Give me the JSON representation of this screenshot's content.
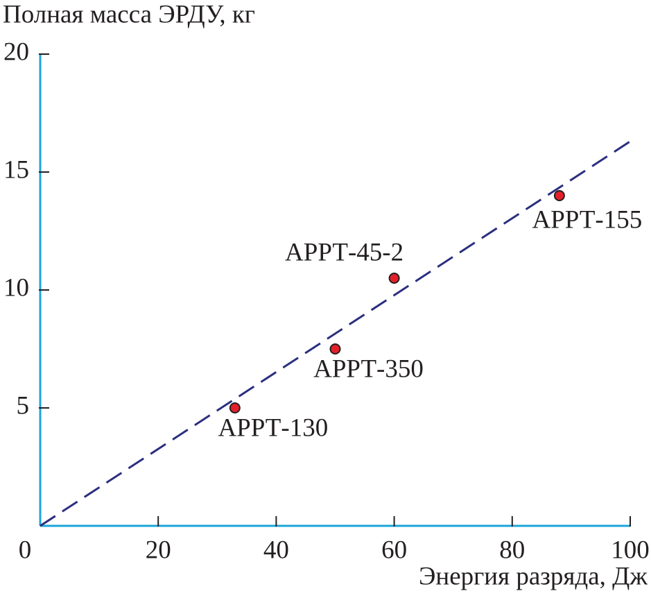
{
  "chart_data": {
    "type": "scatter",
    "title": "Полная масса ЭРДУ, кг",
    "x_label": "Энергия разряда, Дж",
    "x": [
      33,
      50,
      60,
      88
    ],
    "values": [
      5,
      7.5,
      10.5,
      14
    ],
    "point_labels": [
      "АРРТ-130",
      "АРРТ-350",
      "АРРТ-45-2",
      "АРРТ-155"
    ],
    "color": "#e3202a",
    "trend_line": {
      "x": [
        0,
        100
      ],
      "values": [
        0,
        16.3
      ],
      "color": "#2b2f7f",
      "style": "dashed"
    },
    "axis_color": "#1ba6d9",
    "xlim": [
      0,
      100
    ],
    "ylim": [
      0,
      20
    ],
    "xticks": [
      0,
      20,
      40,
      60,
      80,
      100
    ],
    "yticks": [
      5,
      10,
      15,
      20
    ],
    "grid": false
  }
}
